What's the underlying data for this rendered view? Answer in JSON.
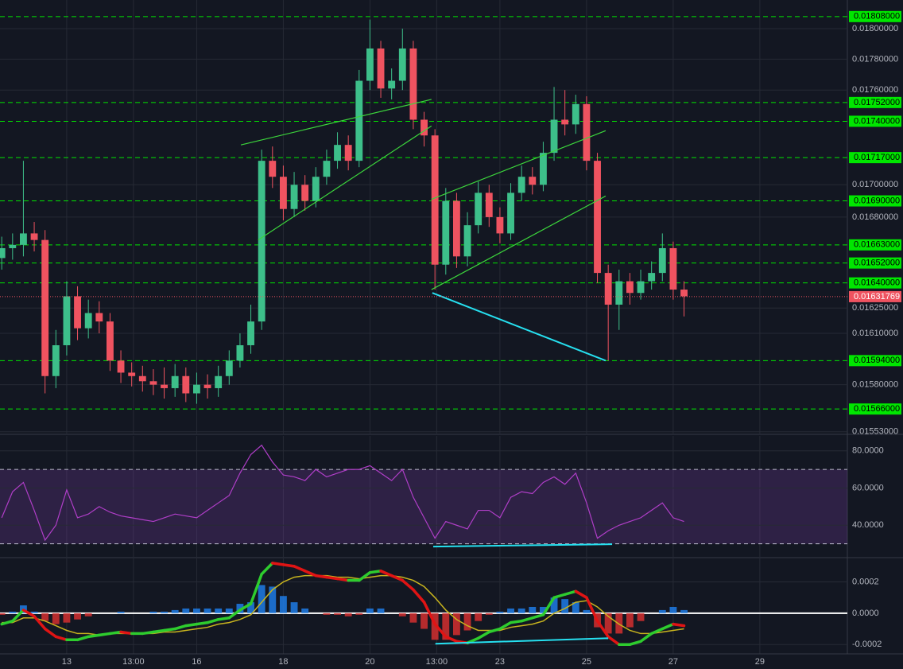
{
  "chart_data": [
    {
      "type": "candlestick",
      "log_scale": true,
      "grid": true,
      "x": [
        11.5,
        11.75,
        12,
        12.25,
        12.5,
        12.75,
        13,
        13.25,
        13.5,
        13.75,
        14,
        14.25,
        14.5,
        14.75,
        15,
        15.25,
        15.5,
        15.75,
        16,
        16.25,
        16.5,
        16.75,
        17,
        17.25,
        17.5,
        17.75,
        18,
        18.25,
        18.5,
        18.75,
        19,
        19.25,
        19.5,
        19.75,
        20,
        20.25,
        20.5,
        20.75,
        21,
        21.25,
        21.5,
        21.75,
        22,
        22.25,
        22.5,
        22.75,
        23,
        23.25,
        23.5,
        23.75,
        24,
        24.25,
        24.5,
        24.75,
        25,
        25.25,
        25.5,
        25.75,
        26,
        26.25,
        26.5,
        26.75,
        27,
        27.25
      ],
      "open": [
        0.01655,
        0.01661,
        0.01663,
        0.0167,
        0.01666,
        0.01585,
        0.01603,
        0.01632,
        0.01613,
        0.01622,
        0.01617,
        0.01594,
        0.01587,
        0.01585,
        0.01582,
        0.0158,
        0.01578,
        0.01585,
        0.01575,
        0.0158,
        0.01578,
        0.01585,
        0.01594,
        0.01603,
        0.01617,
        0.01715,
        0.01705,
        0.01685,
        0.017,
        0.0169,
        0.01705,
        0.01715,
        0.01725,
        0.01715,
        0.01766,
        0.01787,
        0.01761,
        0.01766,
        0.01787,
        0.01741,
        0.01731,
        0.01651,
        0.0169,
        0.01656,
        0.01675,
        0.01695,
        0.0168,
        0.0167,
        0.01695,
        0.01705,
        0.017,
        0.0172,
        0.01741,
        0.01738,
        0.01751,
        0.01715,
        0.01646,
        0.01627,
        0.01641,
        0.01634,
        0.01641,
        0.01646,
        0.01661,
        0.01636
      ],
      "high": [
        0.01668,
        0.0167,
        0.01715,
        0.01677,
        0.01672,
        0.01612,
        0.01641,
        0.01638,
        0.0163,
        0.01629,
        0.01622,
        0.016,
        0.01593,
        0.01591,
        0.01589,
        0.0159,
        0.01592,
        0.0159,
        0.01587,
        0.01586,
        0.01591,
        0.016,
        0.0161,
        0.01627,
        0.01722,
        0.01724,
        0.01712,
        0.01708,
        0.01706,
        0.01711,
        0.01722,
        0.01733,
        0.01731,
        0.01773,
        0.01806,
        0.01792,
        0.01774,
        0.018,
        0.01792,
        0.01746,
        0.01735,
        0.01698,
        0.01695,
        0.01683,
        0.01702,
        0.017,
        0.01686,
        0.01701,
        0.01712,
        0.01711,
        0.01727,
        0.01762,
        0.0176,
        0.01757,
        0.01756,
        0.0172,
        0.01651,
        0.01648,
        0.01646,
        0.01648,
        0.01653,
        0.0167,
        0.01665,
        0.01641
      ],
      "low": [
        0.01648,
        0.01654,
        0.01656,
        0.01659,
        0.01575,
        0.01578,
        0.01597,
        0.01606,
        0.01607,
        0.0161,
        0.01588,
        0.01581,
        0.01579,
        0.01576,
        0.01574,
        0.01572,
        0.01573,
        0.0157,
        0.01569,
        0.01572,
        0.01573,
        0.0158,
        0.0159,
        0.01598,
        0.01612,
        0.01698,
        0.01678,
        0.0168,
        0.01684,
        0.01686,
        0.017,
        0.0171,
        0.01709,
        0.01711,
        0.0176,
        0.01755,
        0.01754,
        0.0176,
        0.01735,
        0.01724,
        0.01636,
        0.01645,
        0.01649,
        0.0165,
        0.0167,
        0.01674,
        0.01664,
        0.01666,
        0.0169,
        0.01694,
        0.01696,
        0.01715,
        0.01731,
        0.01732,
        0.01709,
        0.0164,
        0.01594,
        0.01612,
        0.01627,
        0.0163,
        0.01636,
        0.01641,
        0.0163,
        0.0162
      ],
      "close": [
        0.01661,
        0.01663,
        0.0167,
        0.01666,
        0.01585,
        0.01603,
        0.01632,
        0.01613,
        0.01622,
        0.01617,
        0.01594,
        0.01587,
        0.01585,
        0.01582,
        0.0158,
        0.01578,
        0.01585,
        0.01575,
        0.0158,
        0.01578,
        0.01585,
        0.01594,
        0.01603,
        0.01617,
        0.01715,
        0.01705,
        0.01685,
        0.017,
        0.0169,
        0.01705,
        0.01715,
        0.01725,
        0.01715,
        0.01766,
        0.01787,
        0.01761,
        0.01766,
        0.01787,
        0.01741,
        0.01731,
        0.01651,
        0.0169,
        0.01656,
        0.01675,
        0.01695,
        0.0168,
        0.0167,
        0.01695,
        0.01705,
        0.017,
        0.0172,
        0.01741,
        0.01738,
        0.01751,
        0.01715,
        0.01646,
        0.01627,
        0.01641,
        0.01634,
        0.01641,
        0.01646,
        0.01661,
        0.01636,
        0.01632
      ],
      "up_color": "#3dbf8a",
      "down_color": "#ef5360",
      "xlim": [
        11.46,
        31.02
      ],
      "ylim": [
        0.01552,
        0.01819
      ],
      "yticks": [
        {
          "value": 0.018,
          "label": "0.01800000"
        },
        {
          "value": 0.0178,
          "label": "0.01780000"
        },
        {
          "value": 0.0176,
          "label": "0.01760000"
        },
        {
          "value": 0.017,
          "label": "0.01700000"
        },
        {
          "value": 0.0168,
          "label": "0.01680000"
        },
        {
          "value": 0.01625,
          "label": "0.01625000"
        },
        {
          "value": 0.0161,
          "label": "0.01610000"
        },
        {
          "value": 0.0158,
          "label": "0.01580000"
        },
        {
          "value": 0.01553,
          "label": "0.01553000"
        }
      ],
      "levels": [
        {
          "value": 0.01808,
          "label": "0.01808000"
        },
        {
          "value": 0.01752,
          "label": "0.01752000"
        },
        {
          "value": 0.0174,
          "label": "0.01740000"
        },
        {
          "value": 0.01717,
          "label": "0.01717000"
        },
        {
          "value": 0.0169,
          "label": "0.01690000"
        },
        {
          "value": 0.01663,
          "label": "0.01663000"
        },
        {
          "value": 0.01652,
          "label": "0.01652000"
        },
        {
          "value": 0.0164,
          "label": "0.01640000"
        },
        {
          "value": 0.01594,
          "label": "0.01594000"
        },
        {
          "value": 0.01566,
          "label": "0.01566000"
        }
      ],
      "level_color": "#00e600",
      "last_price": {
        "value": 0.01631769,
        "label": "0.01631769"
      },
      "last_color": "#ef5360",
      "trendlines": [
        {
          "x": [
            17.02,
            21.42
          ],
          "y": [
            0.01725,
            0.01754
          ],
          "color": "#3cd63c"
        },
        {
          "x": [
            17.42,
            21.42
          ],
          "y": [
            0.01666,
            0.01737
          ],
          "color": "#3cd63c"
        },
        {
          "x": [
            21.42,
            25.44
          ],
          "y": [
            0.01691,
            0.01734
          ],
          "color": "#3cd63c"
        },
        {
          "x": [
            21.42,
            25.44
          ],
          "y": [
            0.01636,
            0.01693
          ],
          "color": "#3cd63c"
        },
        {
          "x": [
            21.44,
            25.44
          ],
          "y": [
            0.01634,
            0.01594
          ],
          "color": "#26e0f0"
        }
      ]
    },
    {
      "type": "line",
      "values": [
        44,
        58,
        63,
        48,
        32,
        40,
        59,
        44,
        46,
        50,
        47,
        45,
        44,
        43,
        42,
        44,
        46,
        45,
        44,
        48,
        52,
        56,
        68,
        78,
        83,
        74,
        67,
        66,
        64,
        70,
        66,
        68,
        70,
        70,
        72,
        68,
        64,
        70,
        55,
        44,
        33,
        42,
        40,
        38,
        48,
        48,
        44,
        55,
        58,
        57,
        63,
        66,
        62,
        68,
        52,
        33,
        37,
        40,
        42,
        44,
        48,
        52,
        44,
        42
      ],
      "color": "#b03ec8",
      "ylim": [
        23,
        88
      ],
      "yticks": [
        {
          "value": 80,
          "label": "80.0000"
        },
        {
          "value": 60,
          "label": "60.0000"
        },
        {
          "value": 40,
          "label": "40.0000"
        }
      ],
      "bands": [
        30,
        70
      ],
      "band_color": "#7e3fb0",
      "trendlines": [
        {
          "x": [
            21.46,
            25.59
          ],
          "y": [
            28.5,
            29.8
          ],
          "color": "#26e0f0"
        }
      ]
    },
    {
      "type": "macd",
      "macd": [
        -7e-05,
        -5e-05,
        2e-05,
        -2e-05,
        -0.0001,
        -0.00015,
        -0.00017,
        -0.00017,
        -0.00015,
        -0.00014,
        -0.00013,
        -0.00012,
        -0.00013,
        -0.00013,
        -0.00012,
        -0.00011,
        -0.0001,
        -8e-05,
        -7e-05,
        -6e-05,
        -4e-05,
        -3e-05,
        2e-05,
        6e-05,
        0.00025,
        0.00032,
        0.00031,
        0.0003,
        0.00027,
        0.00024,
        0.00023,
        0.00022,
        0.00021,
        0.00021,
        0.00026,
        0.00027,
        0.00024,
        0.00021,
        0.00015,
        7e-05,
        -7e-05,
        -0.00015,
        -0.00018,
        -0.00019,
        -0.00016,
        -0.00012,
        -0.0001,
        -6e-05,
        -5e-05,
        -3e-05,
        -1e-05,
        0.0001,
        0.00012,
        0.00014,
        0.0001,
        -5e-05,
        -0.00015,
        -0.0002,
        -0.0002,
        -0.00018,
        -0.00013,
        -0.0001,
        -7e-05,
        -8e-05
      ],
      "signal": [
        -6e-05,
        -6e-05,
        -3e-05,
        -3e-05,
        -5e-05,
        -8e-05,
        -0.00011,
        -0.00013,
        -0.00013,
        -0.00014,
        -0.00013,
        -0.00013,
        -0.00013,
        -0.00013,
        -0.00013,
        -0.00012,
        -0.00012,
        -0.00011,
        -0.0001,
        -9e-05,
        -7e-05,
        -6e-05,
        -4e-05,
        -1e-05,
        7e-05,
        0.00015,
        0.0002,
        0.00023,
        0.00024,
        0.00024,
        0.00024,
        0.00023,
        0.00023,
        0.00022,
        0.00023,
        0.00024,
        0.00024,
        0.00023,
        0.00021,
        0.00017,
        0.0001,
        2e-05,
        -4e-05,
        -8e-05,
        -0.00011,
        -0.00011,
        -0.00011,
        -9e-05,
        -8e-05,
        -7e-05,
        -5e-05,
        0,
        3e-05,
        7e-05,
        8e-05,
        4e-05,
        -2e-05,
        -7e-05,
        -0.00011,
        -0.00013,
        -0.00013,
        -0.00012,
        -0.00011,
        -0.0001
      ],
      "histogram": [
        -1e-05,
        1e-05,
        5e-05,
        1e-05,
        -5e-05,
        -7e-05,
        -6e-05,
        -4e-05,
        -2e-05,
        0,
        0,
        1e-05,
        0,
        0,
        1e-05,
        1e-05,
        2e-05,
        3e-05,
        3e-05,
        3e-05,
        3e-05,
        3e-05,
        6e-05,
        7e-05,
        0.00018,
        0.00017,
        0.00011,
        7e-05,
        3e-05,
        0,
        -1e-05,
        -1e-05,
        -2e-05,
        -1e-05,
        3e-05,
        3e-05,
        0,
        -2e-05,
        -6e-05,
        -0.0001,
        -0.00017,
        -0.00017,
        -0.00014,
        -0.00011,
        -5e-05,
        -1e-05,
        1e-05,
        3e-05,
        3e-05,
        4e-05,
        4e-05,
        0.0001,
        9e-05,
        7e-05,
        2e-05,
        -9e-05,
        -0.00013,
        -0.00013,
        -9e-05,
        -5e-05,
        0,
        2e-05,
        4e-05,
        2e-05
      ],
      "macd_up_color": "#2ecc2e",
      "macd_down_color": "#e01414",
      "signal_color": "#c8b41e",
      "hist_up_color": "#1e7be5",
      "hist_down_color": "#d32f2f",
      "zero_line_color": "#ffffff",
      "ylim": [
        -0.00026,
        0.00035
      ],
      "yticks": [
        0.0002,
        {
          "value": 0,
          "label": "0.0000"
        },
        -0.0002
      ],
      "xticks": [
        13,
        {
          "value": 14.54,
          "label": "13:00"
        },
        16,
        18,
        20,
        {
          "value": 21.54,
          "label": "13:00"
        },
        23,
        25,
        27,
        29
      ],
      "trendlines": [
        {
          "x": [
            21.51,
            25.5
          ],
          "y": [
            -0.000195,
            -0.00016
          ],
          "color": "#26e0f0"
        }
      ]
    }
  ]
}
